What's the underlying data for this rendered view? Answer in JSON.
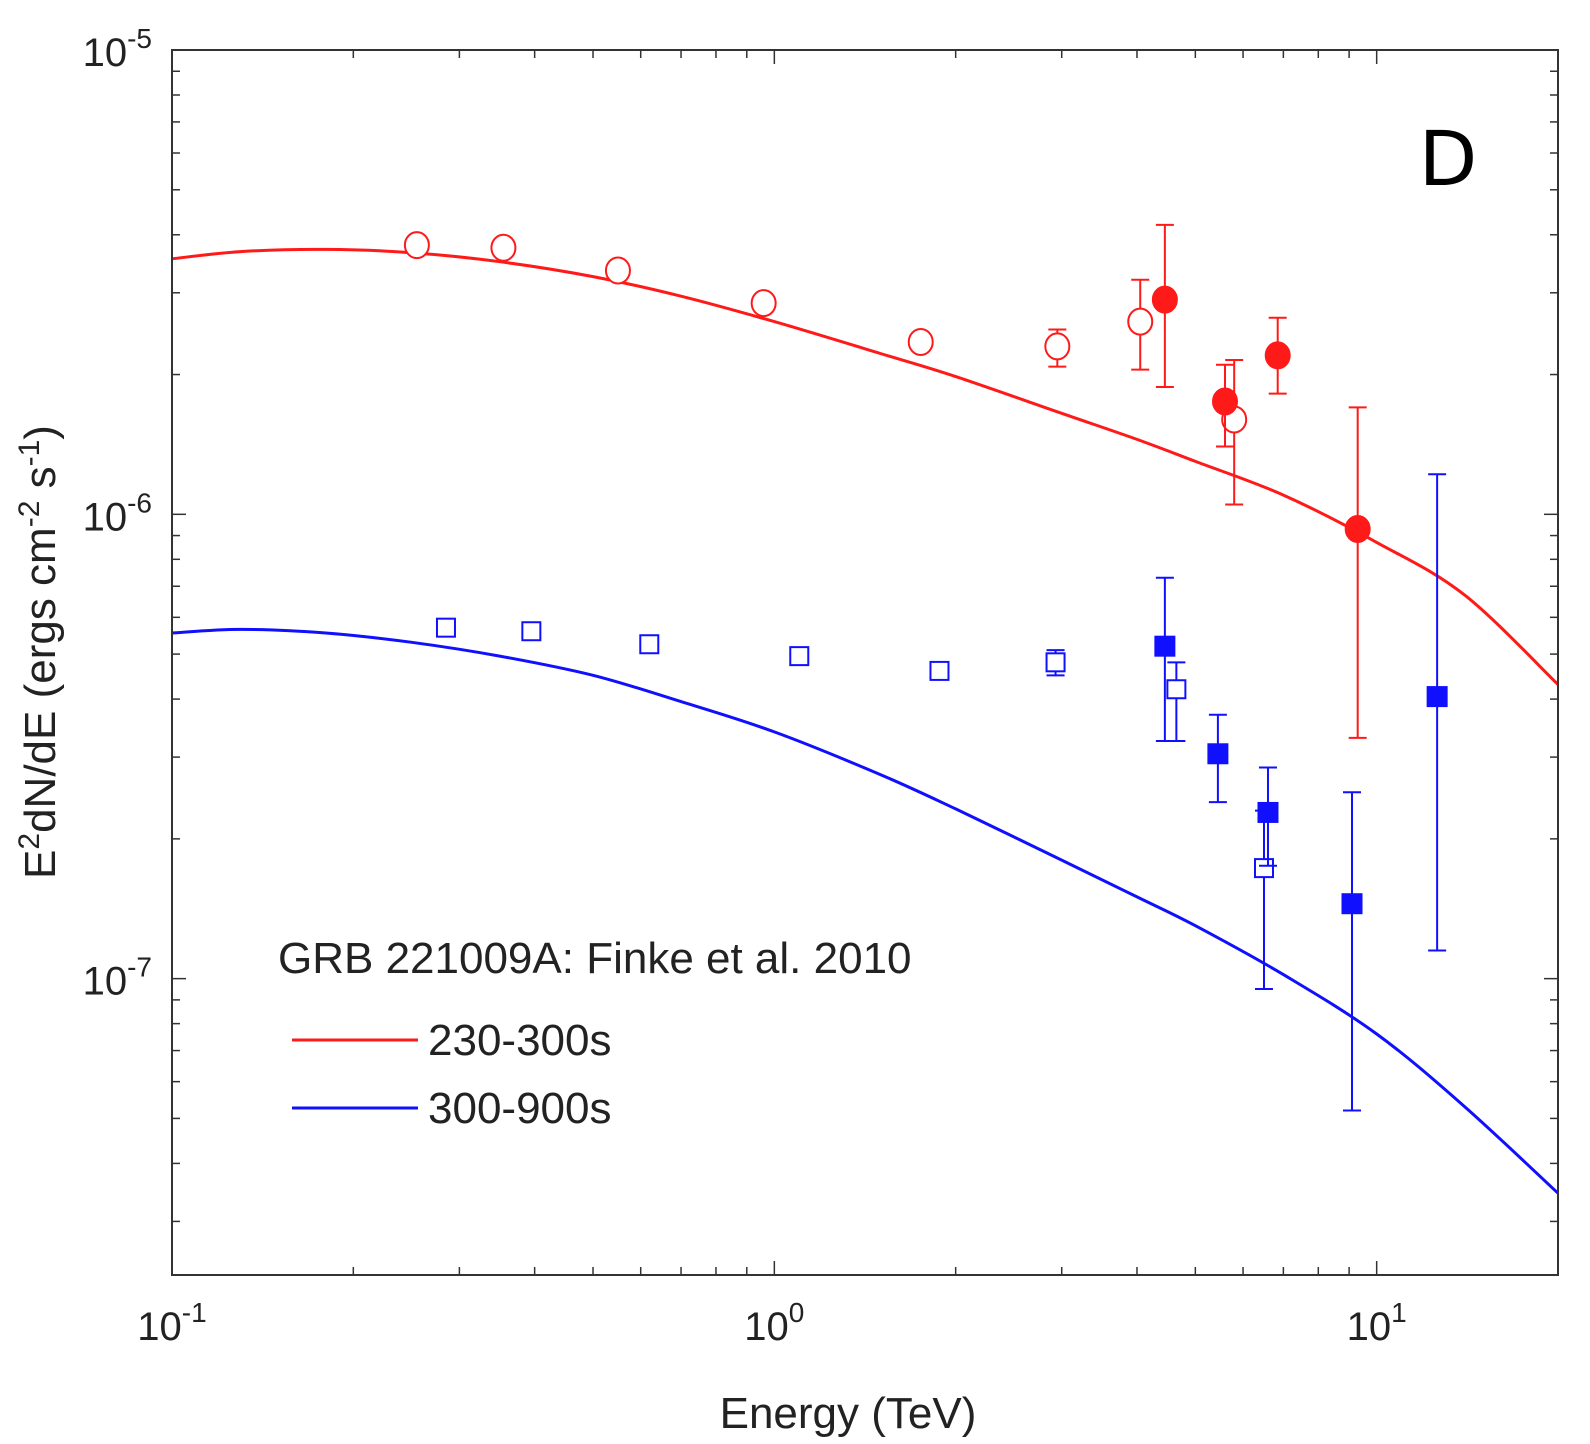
{
  "chart_data": {
    "type": "scatter",
    "panel_label": "D",
    "xlabel": "Energy (TeV)",
    "ylabel": {
      "base": "E",
      "sup1": "2",
      "mid": "dN/dE (ergs cm",
      "sup2": "-2",
      "mid2": " s",
      "sup3": "-1",
      "end": ")"
    },
    "xscale": "log",
    "yscale": "log",
    "xlim": [
      0.1,
      20
    ],
    "ylim": [
      2.3e-08,
      1e-05
    ],
    "x_ticks": [
      {
        "value": 0.1,
        "base": "10",
        "exp": "-1"
      },
      {
        "value": 1,
        "base": "10",
        "exp": "0"
      },
      {
        "value": 10,
        "base": "10",
        "exp": "1"
      }
    ],
    "y_ticks": [
      {
        "value": 1e-07,
        "base": "10",
        "exp": "-7"
      },
      {
        "value": 1e-06,
        "base": "10",
        "exp": "-6"
      },
      {
        "value": 1e-05,
        "base": "10",
        "exp": "-5"
      }
    ],
    "legend": {
      "title": "GRB 221009A: Finke et al. 2010",
      "position": "lower-left",
      "entries": [
        {
          "label": "230-300s",
          "color": "#ff1a1a"
        },
        {
          "label": "300-900s",
          "color": "#1010ff"
        }
      ]
    },
    "series": [
      {
        "name": "230-300s",
        "color": "#ff1a1a",
        "model_curve": {
          "x": [
            0.1,
            0.13,
            0.18,
            0.25,
            0.35,
            0.5,
            0.7,
            1.0,
            1.5,
            2.0,
            3.0,
            4.0,
            5.0,
            7.0,
            10.0,
            14.0,
            20.0
          ],
          "y": [
            3.55e-06,
            3.68e-06,
            3.72e-06,
            3.66e-06,
            3.5e-06,
            3.25e-06,
            2.95e-06,
            2.6e-06,
            2.22e-06,
            1.98e-06,
            1.65e-06,
            1.45e-06,
            1.3e-06,
            1.1e-06,
            8.7e-07,
            6.7e-07,
            4.3e-07
          ]
        },
        "points_open": [
          {
            "x": 0.255,
            "y": 3.8e-06
          },
          {
            "x": 0.355,
            "y": 3.75e-06
          },
          {
            "x": 0.55,
            "y": 3.35e-06
          },
          {
            "x": 0.96,
            "y": 2.85e-06
          },
          {
            "x": 1.75,
            "y": 2.35e-06
          },
          {
            "x": 2.95,
            "y": 2.3e-06,
            "ylo": 2.08e-06,
            "yhi": 2.5e-06
          },
          {
            "x": 4.05,
            "y": 2.6e-06,
            "ylo": 2.05e-06,
            "yhi": 3.2e-06
          },
          {
            "x": 5.8,
            "y": 1.6e-06,
            "ylo": 1.05e-06,
            "yhi": 2.15e-06
          }
        ],
        "points_filled": [
          {
            "x": 4.45,
            "y": 2.9e-06,
            "ylo": 1.88e-06,
            "yhi": 4.2e-06
          },
          {
            "x": 5.6,
            "y": 1.75e-06,
            "ylo": 1.4e-06,
            "yhi": 2.1e-06
          },
          {
            "x": 6.85,
            "y": 2.2e-06,
            "ylo": 1.82e-06,
            "yhi": 2.65e-06
          },
          {
            "x": 9.3,
            "y": 9.3e-07,
            "ylo": 3.3e-07,
            "yhi": 1.7e-06
          }
        ]
      },
      {
        "name": "300-900s",
        "color": "#1010ff",
        "model_curve": {
          "x": [
            0.1,
            0.13,
            0.18,
            0.25,
            0.35,
            0.5,
            0.7,
            1.0,
            1.5,
            2.0,
            3.0,
            4.0,
            5.0,
            7.0,
            10.0,
            14.0,
            20.0
          ],
          "y": [
            5.55e-07,
            5.65e-07,
            5.55e-07,
            5.3e-07,
            4.95e-07,
            4.5e-07,
            3.95e-07,
            3.4e-07,
            2.75e-07,
            2.32e-07,
            1.8e-07,
            1.5e-07,
            1.3e-07,
            1.02e-07,
            7.6e-08,
            5.3e-08,
            3.45e-08
          ]
        },
        "points_open": [
          {
            "x": 0.285,
            "y": 5.7e-07
          },
          {
            "x": 0.395,
            "y": 5.6e-07
          },
          {
            "x": 0.62,
            "y": 5.25e-07
          },
          {
            "x": 1.1,
            "y": 4.95e-07
          },
          {
            "x": 1.88,
            "y": 4.6e-07
          },
          {
            "x": 2.93,
            "y": 4.8e-07,
            "ylo": 4.5e-07,
            "yhi": 5.1e-07
          },
          {
            "x": 4.65,
            "y": 4.2e-07,
            "ylo": 3.25e-07,
            "yhi": 4.8e-07
          },
          {
            "x": 6.5,
            "y": 1.73e-07,
            "ylo": 9.5e-08,
            "yhi": 2.3e-07
          }
        ],
        "points_filled": [
          {
            "x": 4.45,
            "y": 5.2e-07,
            "ylo": 3.25e-07,
            "yhi": 7.3e-07
          },
          {
            "x": 5.45,
            "y": 3.05e-07,
            "ylo": 2.4e-07,
            "yhi": 3.7e-07
          },
          {
            "x": 6.6,
            "y": 2.28e-07,
            "ylo": 1.75e-07,
            "yhi": 2.85e-07
          },
          {
            "x": 9.1,
            "y": 1.45e-07,
            "ylo": 5.2e-08,
            "yhi": 2.52e-07
          },
          {
            "x": 12.6,
            "y": 4.05e-07,
            "ylo": 1.15e-07,
            "yhi": 1.22e-06
          }
        ]
      }
    ]
  }
}
